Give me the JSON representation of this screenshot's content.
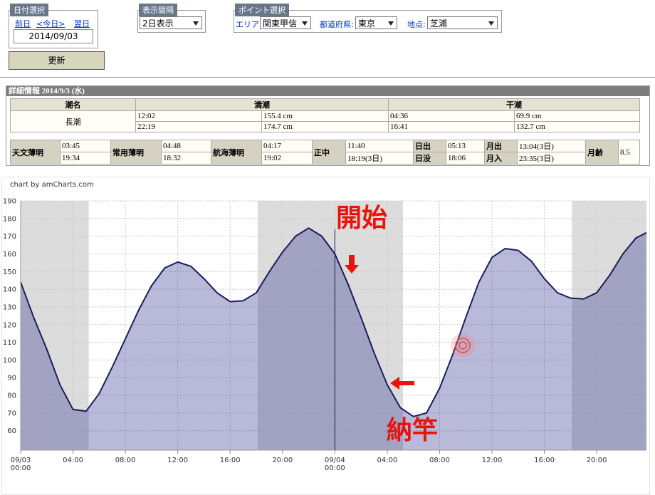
{
  "controls": {
    "date_select": {
      "title": "日付選択",
      "prev": "前日",
      "today": "<今日>",
      "next": "翌日",
      "date": "2014/09/03"
    },
    "interval": {
      "title": "表示間隔",
      "value": "2日表示"
    },
    "point": {
      "title": "ポイント選択",
      "area_label": "エリア:",
      "area": "関東甲信",
      "pref_label": "都道府県:",
      "pref": "東京",
      "spot_label": "地点:",
      "spot": "芝浦"
    },
    "update_button": "更新"
  },
  "details": {
    "title": "詳細情報 2014/9/3 (水)",
    "tide_table": {
      "header": [
        "潮名",
        "満潮",
        "干潮"
      ],
      "tide_name": "長潮",
      "rows": [
        [
          "12:02",
          "155.4 cm",
          "04:36",
          "69.9 cm"
        ],
        [
          "22:19",
          "174.7 cm",
          "16:41",
          "132.7 cm"
        ]
      ]
    },
    "sun_moon": {
      "rows": [
        [
          "天文薄明",
          "03:45",
          "常用薄明",
          "04:48",
          "航海薄明",
          "04:17",
          "正中",
          "11:40",
          "日出",
          "05:13",
          "月出",
          "13:04(3日)",
          "月齢",
          "8.5"
        ],
        [
          "19:34",
          "18:32",
          "19:02",
          "18:19(3日)",
          "日没",
          "18:06",
          "月入",
          "23:35(3日)"
        ]
      ]
    }
  },
  "chart_data": {
    "type": "area",
    "credit": "chart by amCharts.com",
    "x": [
      0,
      1,
      2,
      3,
      4,
      5,
      6,
      7,
      8,
      9,
      10,
      11,
      12,
      13,
      14,
      15,
      16,
      17,
      18,
      19,
      20,
      21,
      22,
      23,
      24,
      25,
      26,
      27,
      28,
      29,
      30,
      31,
      32,
      33,
      34,
      35,
      36,
      37,
      38,
      39,
      40,
      41,
      42,
      43,
      44,
      45,
      46,
      47,
      47.8
    ],
    "values": [
      144,
      124,
      106,
      86,
      72,
      71,
      81,
      96,
      112,
      128,
      142,
      152,
      155.4,
      153,
      146,
      138,
      133,
      133.5,
      138,
      150,
      161,
      170,
      174.6,
      170,
      160,
      143,
      124,
      104,
      86,
      73,
      68,
      70,
      84,
      103,
      124,
      144,
      158,
      163,
      162,
      156,
      146,
      138,
      135,
      134.5,
      138,
      148,
      160,
      169,
      172
    ],
    "xlim": [
      0,
      47.8
    ],
    "ylim": [
      49,
      190
    ],
    "yticks": [
      60,
      70,
      80,
      90,
      100,
      110,
      120,
      130,
      140,
      150,
      160,
      170,
      180,
      190
    ],
    "xticks": [
      {
        "value": 0,
        "label": "09/03\n00:00"
      },
      {
        "value": 4,
        "label": "04:00"
      },
      {
        "value": 8,
        "label": "08:00"
      },
      {
        "value": 12,
        "label": "12:00"
      },
      {
        "value": 16,
        "label": "16:00"
      },
      {
        "value": 20,
        "label": "20:00"
      },
      {
        "value": 24,
        "label": "09/04\n00:00"
      },
      {
        "value": 28,
        "label": "04:00"
      },
      {
        "value": 32,
        "label": "08:00"
      },
      {
        "value": 36,
        "label": "12:00"
      },
      {
        "value": 40,
        "label": "16:00"
      },
      {
        "value": 44,
        "label": "20:00"
      }
    ],
    "night_bands": [
      [
        0,
        5.2
      ],
      [
        18.1,
        29.2
      ],
      [
        42.1,
        47.8
      ]
    ],
    "grid": true,
    "line_color": "#1c1c5c",
    "fill_color": "rgba(60,60,150,0.36)",
    "band_color": "#dcdcdc",
    "annotations": [
      "開始",
      "納竿"
    ]
  }
}
